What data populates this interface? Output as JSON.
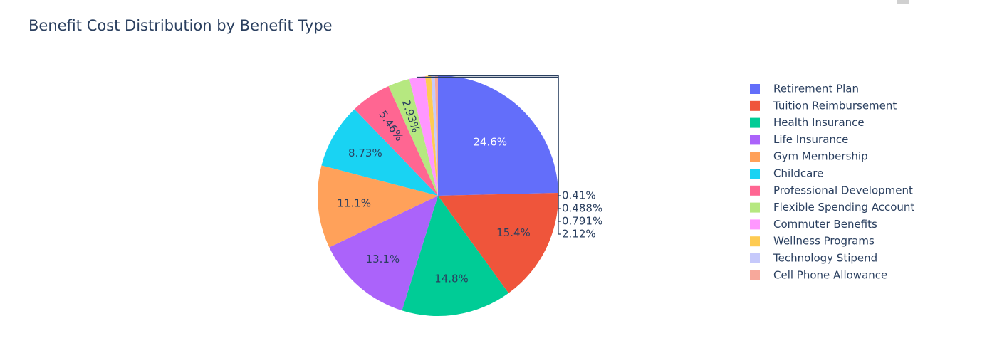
{
  "chart_data": {
    "type": "pie",
    "title": "Benefit Cost Distribution by Benefit Type",
    "legend_position": "right",
    "slices": [
      {
        "label": "Retirement Plan",
        "percent": 24.6,
        "percent_text": "24.6%",
        "color": "#636efa"
      },
      {
        "label": "Tuition Reimbursement",
        "percent": 15.4,
        "percent_text": "15.4%",
        "color": "#EF553B"
      },
      {
        "label": "Health Insurance",
        "percent": 14.8,
        "percent_text": "14.8%",
        "color": "#00cc96"
      },
      {
        "label": "Life Insurance",
        "percent": 13.1,
        "percent_text": "13.1%",
        "color": "#ab63fa"
      },
      {
        "label": "Gym Membership",
        "percent": 11.1,
        "percent_text": "11.1%",
        "color": "#FFA15A"
      },
      {
        "label": "Childcare",
        "percent": 8.73,
        "percent_text": "8.73%",
        "color": "#19d3f3"
      },
      {
        "label": "Professional Development",
        "percent": 5.46,
        "percent_text": "5.46%",
        "color": "#FF6692"
      },
      {
        "label": "Flexible Spending Account",
        "percent": 2.93,
        "percent_text": "2.93%",
        "color": "#B6E880"
      },
      {
        "label": "Commuter Benefits",
        "percent": 2.12,
        "percent_text": "2.12%",
        "color": "#FF97FF"
      },
      {
        "label": "Wellness Programs",
        "percent": 0.791,
        "percent_text": "0.791%",
        "color": "#FECB52"
      },
      {
        "label": "Technology Stipend",
        "percent": 0.488,
        "percent_text": "0.488%",
        "color": "#c6c9fb"
      },
      {
        "label": "Cell Phone Allowance",
        "percent": 0.41,
        "percent_text": "0.41%",
        "color": "#f7a89b"
      }
    ]
  }
}
